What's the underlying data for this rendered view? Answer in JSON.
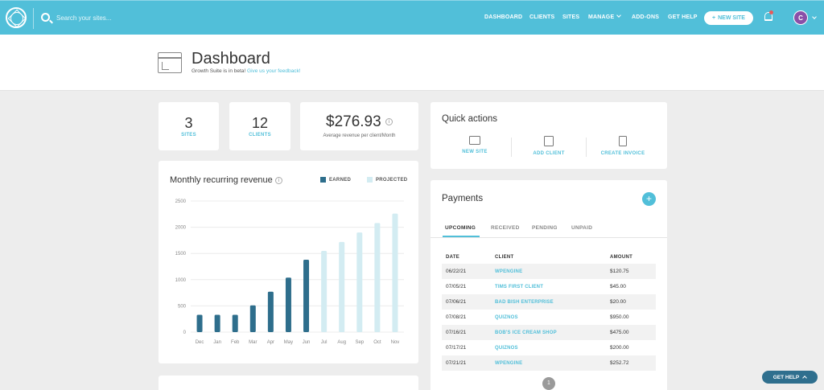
{
  "topbar": {
    "search_placeholder": "Search your sites...",
    "nav": [
      "DASHBOARD",
      "CLIENTS",
      "SITES",
      "MANAGE",
      "ADD-ONS",
      "GET HELP"
    ],
    "new_site": "NEW SITE",
    "avatar_initial": "C"
  },
  "header": {
    "title": "Dashboard",
    "beta_text": "Growth Suite is in beta!",
    "beta_link": "Give us your feedback!"
  },
  "stats": {
    "sites_value": "3",
    "sites_label": "SITES",
    "clients_value": "12",
    "clients_label": "CLIENTS",
    "revenue_value": "$276.93",
    "revenue_label": "Average revenue per client/Month"
  },
  "chart": {
    "title": "Monthly recurring revenue",
    "legend_earned": "EARNED",
    "legend_projected": "PROJECTED"
  },
  "chart_data": {
    "type": "bar",
    "title": "Monthly recurring revenue",
    "categories": [
      "Dec",
      "Jan",
      "Feb",
      "Mar",
      "Apr",
      "May",
      "Jun",
      "Jul",
      "Aug",
      "Sep",
      "Oct",
      "Nov"
    ],
    "series": [
      {
        "name": "EARNED",
        "values": [
          330,
          330,
          330,
          510,
          770,
          1040,
          1380,
          null,
          null,
          null,
          null,
          null
        ]
      },
      {
        "name": "PROJECTED",
        "values": [
          null,
          null,
          null,
          null,
          null,
          null,
          null,
          1550,
          1720,
          1900,
          2080,
          2260
        ]
      }
    ],
    "yticks": [
      0,
      500,
      1000,
      1500,
      2000,
      2500
    ],
    "ylim": [
      0,
      2500
    ],
    "grid": true,
    "legend": "top-right",
    "colors": {
      "EARNED": "#2e6e8c",
      "PROJECTED": "#d3ecf2"
    }
  },
  "quick_actions": {
    "title": "Quick actions",
    "items": [
      "NEW SITE",
      "ADD CLIENT",
      "CREATE INVOICE"
    ]
  },
  "payments": {
    "title": "Payments",
    "tabs": [
      "UPCOMING",
      "RECEIVED",
      "PENDING",
      "UNPAID"
    ],
    "columns": [
      "DATE",
      "CLIENT",
      "AMOUNT"
    ],
    "rows": [
      {
        "date": "06/22/21",
        "client": "WPENGINE",
        "amount": "$120.75"
      },
      {
        "date": "07/05/21",
        "client": "TIMS FIRST CLIENT",
        "amount": "$45.00"
      },
      {
        "date": "07/06/21",
        "client": "BAD BISH ENTERPRISE",
        "amount": "$20.00"
      },
      {
        "date": "07/08/21",
        "client": "QUIZNOS",
        "amount": "$950.00"
      },
      {
        "date": "07/16/21",
        "client": "BOB'S ICE CREAM SHOP",
        "amount": "$475.00"
      },
      {
        "date": "07/17/21",
        "client": "QUIZNOS",
        "amount": "$200.00"
      },
      {
        "date": "07/21/21",
        "client": "WPENGINE",
        "amount": "$252.72"
      }
    ],
    "page": "1"
  },
  "help": {
    "label": "GET HELP"
  },
  "colors": {
    "accent": "#51bfd9",
    "earned": "#2e6e8c",
    "projected": "#d3ecf2",
    "avatar": "#8a4fa8"
  }
}
